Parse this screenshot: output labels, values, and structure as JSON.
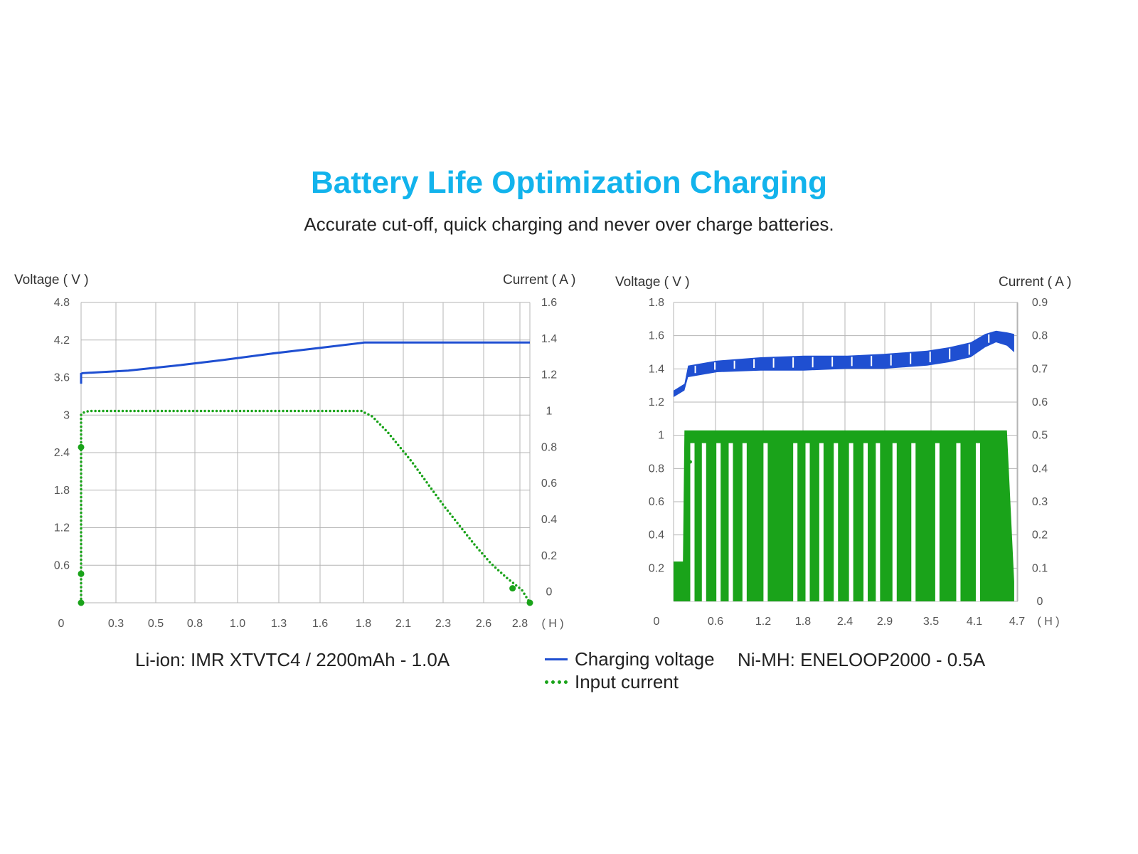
{
  "header": {
    "title": "Battery Life Optimization Charging",
    "subtitle": "Accurate cut-off, quick charging and never over charge batteries."
  },
  "legend": {
    "voltage_label": "Charging voltage",
    "current_label": "Input current"
  },
  "colors": {
    "title": "#12b3ec",
    "voltage": "#1f4fd1",
    "current": "#1aa31a",
    "grid": "#b5b5b5"
  },
  "chart_data": [
    {
      "type": "line",
      "caption": "Li-ion: IMR XTVTC4 / 2200mAh - 1.0A",
      "ylabel_left": "Voltage ( V )",
      "ylabel_right": "Current ( A )",
      "x_unit": "( H )",
      "x_origin_label": "0",
      "x_ticks": [
        "0.3",
        "0.5",
        "0.8",
        "1.0",
        "1.3",
        "1.6",
        "1.8",
        "2.1",
        "2.3",
        "2.6",
        "2.8"
      ],
      "xlim": [
        0,
        2.85
      ],
      "left_ticks": [
        0.6,
        1.2,
        1.8,
        2.4,
        3,
        3.6,
        4.2,
        4.8
      ],
      "left_tick_labels": [
        "0.6",
        "1.2",
        "1.8",
        "2.4",
        "3",
        "3.6",
        "4.2",
        "4.8"
      ],
      "ylim_left": [
        0,
        4.8
      ],
      "right_ticks": [
        0,
        0.2,
        0.4,
        0.6,
        0.8,
        1,
        1.2,
        1.4,
        1.6
      ],
      "right_tick_labels": [
        "0",
        "0.2",
        "0.4",
        "0.6",
        "0.8",
        "1",
        "1.2",
        "1.4",
        "1.6"
      ],
      "ylim_right": [
        -0.06,
        1.6
      ],
      "grid": true,
      "series": [
        {
          "name": "Charging voltage",
          "axis": "left",
          "style": "solid",
          "x": [
            0,
            0,
            0.01,
            0.3,
            0.6,
            0.9,
            1.2,
            1.5,
            1.8,
            2.85
          ],
          "y": [
            3.5,
            3.66,
            3.67,
            3.71,
            3.79,
            3.88,
            3.98,
            4.07,
            4.16,
            4.16
          ]
        },
        {
          "name": "Input current",
          "axis": "right",
          "style": "dotted",
          "x": [
            0,
            0,
            0.01,
            0.05,
            0.5,
            1.0,
            1.5,
            1.78,
            1.85,
            1.95,
            2.1,
            2.3,
            2.5,
            2.6,
            2.7,
            2.8,
            2.85
          ],
          "y": [
            -0.06,
            0.98,
            0.99,
            1.0,
            1.0,
            1.0,
            1.0,
            1.0,
            0.97,
            0.88,
            0.72,
            0.48,
            0.26,
            0.16,
            0.08,
            0.01,
            -0.06
          ]
        }
      ]
    },
    {
      "type": "line",
      "caption": "Ni-MH: ENELOOP2000 - 0.5A",
      "ylabel_left": "Voltage ( V )",
      "ylabel_right": "Current ( A )",
      "x_unit": "( H )",
      "x_origin_label": "0",
      "x_ticks": [
        "0.6",
        "1.2",
        "1.8",
        "2.4",
        "2.9",
        "3.5",
        "4.1",
        "4.7"
      ],
      "xlim": [
        0,
        4.75
      ],
      "left_ticks": [
        0.2,
        0.4,
        0.6,
        0.8,
        1,
        1.2,
        1.4,
        1.6,
        1.8
      ],
      "left_tick_labels": [
        "0.2",
        "0.4",
        "0.6",
        "0.8",
        "1",
        "1.2",
        "1.4",
        "1.6",
        "1.8"
      ],
      "ylim_left": [
        0,
        1.8
      ],
      "right_ticks": [
        0,
        0.1,
        0.2,
        0.3,
        0.4,
        0.5,
        0.6,
        0.7,
        0.8,
        0.9
      ],
      "right_tick_labels": [
        "0",
        "0.1",
        "0.2",
        "0.3",
        "0.4",
        "0.5",
        "0.6",
        "0.7",
        "0.8",
        "0.9"
      ],
      "ylim_right": [
        0,
        0.9
      ],
      "grid": true,
      "series": [
        {
          "name": "Charging voltage",
          "axis": "left",
          "style": "band",
          "x": [
            0,
            0.15,
            0.2,
            0.6,
            1.2,
            1.8,
            2.4,
            2.9,
            3.5,
            3.8,
            4.1,
            4.3,
            4.45,
            4.6,
            4.7
          ],
          "y_low": [
            1.23,
            1.27,
            1.35,
            1.38,
            1.39,
            1.39,
            1.4,
            1.4,
            1.42,
            1.44,
            1.47,
            1.53,
            1.56,
            1.54,
            1.5
          ],
          "y_high": [
            1.27,
            1.31,
            1.42,
            1.45,
            1.47,
            1.48,
            1.48,
            1.49,
            1.51,
            1.53,
            1.56,
            1.61,
            1.63,
            1.62,
            1.61
          ]
        },
        {
          "name": "Input current",
          "axis": "right",
          "style": "pulses",
          "x": [
            0,
            0.13,
            0.15,
            4.6,
            4.7
          ],
          "y_peak": [
            0.12,
            0.12,
            0.515,
            0.515,
            0.06
          ],
          "gaps_x": [
            0.26,
            0.42,
            0.62,
            0.79,
            0.98,
            1.27,
            1.68,
            1.85,
            2.04,
            2.24,
            2.45,
            2.65,
            2.82,
            3.05,
            3.31,
            3.64,
            3.93,
            4.2
          ]
        }
      ]
    }
  ]
}
